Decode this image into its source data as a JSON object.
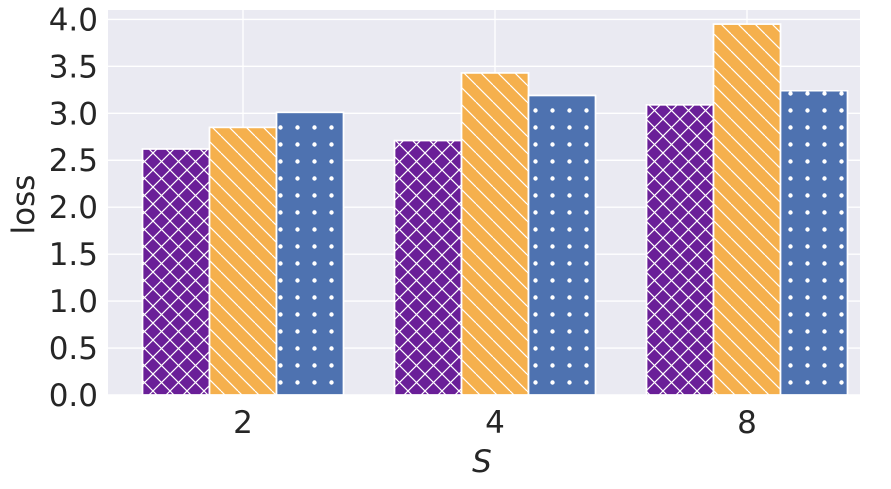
{
  "chart_data": {
    "type": "bar",
    "categories": [
      "2",
      "4",
      "8"
    ],
    "series": [
      {
        "values": [
          2.62,
          2.71,
          3.09
        ],
        "color": "#6a1f98",
        "pattern": "crosshatch"
      },
      {
        "values": [
          2.85,
          3.43,
          3.95
        ],
        "color": "#f5b04d",
        "pattern": "diagonal"
      },
      {
        "values": [
          3.01,
          3.19,
          3.24
        ],
        "color": "#4e72b0",
        "pattern": "dots"
      }
    ],
    "xlabel": "S",
    "ylabel": "loss",
    "ylim": [
      0,
      4.1
    ],
    "yticks": [
      "0.0",
      "0.5",
      "1.0",
      "1.5",
      "2.0",
      "2.5",
      "3.0",
      "3.5",
      "4.0"
    ],
    "grid": true,
    "legend": "none",
    "background_color": "#eaeaf2"
  }
}
